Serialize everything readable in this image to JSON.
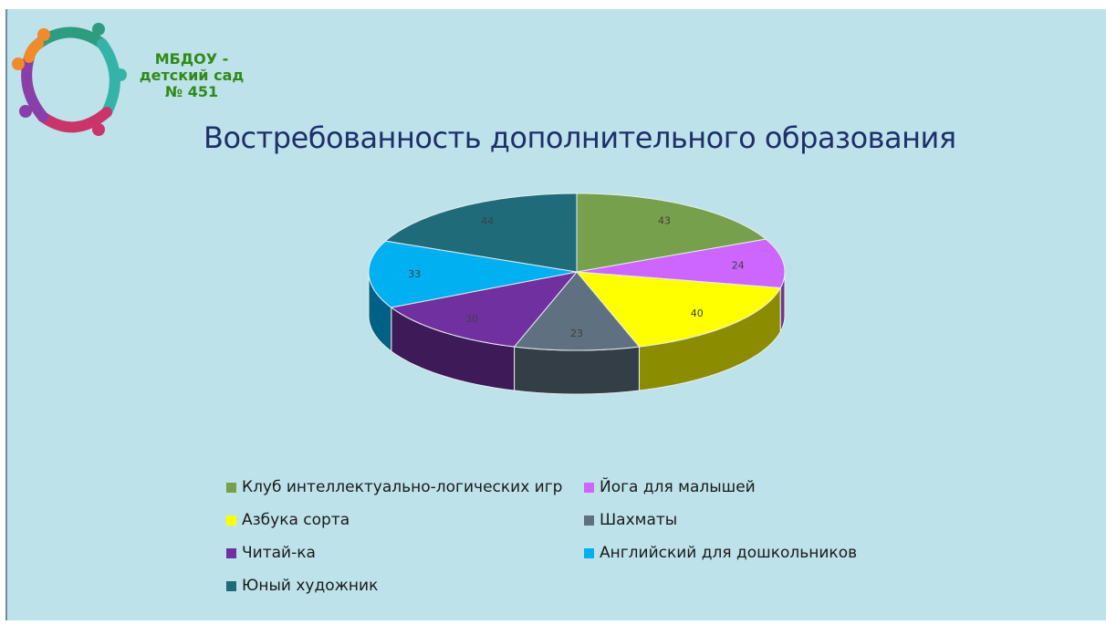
{
  "logo": {
    "icon": "circle-of-children-logo",
    "line1": "МБДОУ -",
    "line2": "детский сад",
    "line3": "№ 451"
  },
  "chart_data": {
    "type": "pie",
    "title": "Востребованность дополнительного образования",
    "style": "3d-pie",
    "legend_position": "bottom",
    "slices": [
      {
        "name": "Клуб интеллектуально-логических игр",
        "value": 43,
        "color": "#77a04c"
      },
      {
        "name": "Йога для малышей",
        "value": 24,
        "color": "#cc66ff"
      },
      {
        "name": "Азбука сорта",
        "value": 40,
        "color": "#ffff00"
      },
      {
        "name": "Шахматы",
        "value": 23,
        "color": "#5f7080"
      },
      {
        "name": "Читай-ка",
        "value": 30,
        "color": "#7030a0"
      },
      {
        "name": "Английский для дошкольников",
        "value": 33,
        "color": "#00b0f0"
      },
      {
        "name": "Юный художник",
        "value": 44,
        "color": "#1f6b7a"
      }
    ]
  }
}
